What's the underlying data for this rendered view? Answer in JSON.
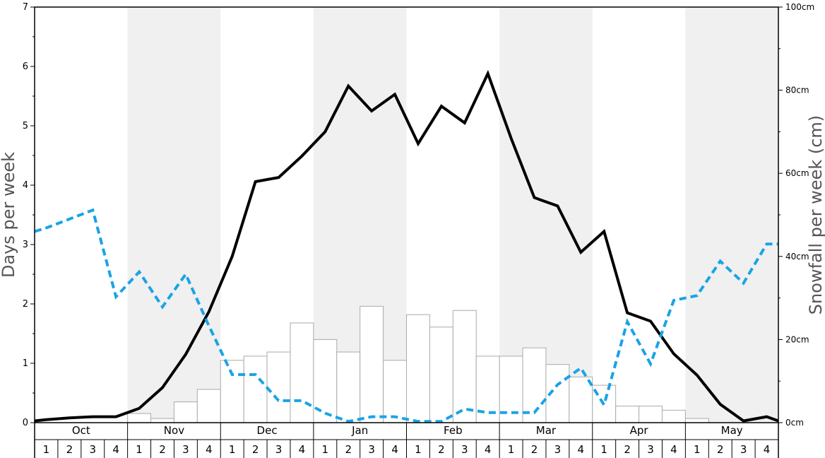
{
  "chart_data": {
    "type": "bar+line",
    "ylabel_left": "Days per week",
    "ylabel_right": "Snowfall per week (cm)",
    "ylim_left": [
      0,
      7
    ],
    "ylim_right": [
      0,
      100
    ],
    "yticks_left": [
      "0",
      "1",
      "2",
      "3",
      "4",
      "5",
      "6",
      "7"
    ],
    "yticks_right": [
      "0cm",
      "20cm",
      "40cm",
      "60cm",
      "80cm",
      "100cm"
    ],
    "months": [
      "Oct",
      "Nov",
      "Dec",
      "Jan",
      "Feb",
      "Mar",
      "Apr",
      "May"
    ],
    "weeks": [
      "1",
      "2",
      "3",
      "4"
    ],
    "shaded_months": [
      "Nov",
      "Jan",
      "Mar",
      "May"
    ],
    "colors": {
      "bars_stroke": "#aaaaaa",
      "bars_fill": "#ffffff",
      "solid_line": "#000000",
      "dashed_line": "#1aa3e6",
      "shade": "#f0f0f0"
    },
    "series": [
      {
        "kind": "bars",
        "axis": "right",
        "values": [
          0,
          0,
          0,
          0,
          2.2,
          1.0,
          5.0,
          8.0,
          15.0,
          16.0,
          17.0,
          24.0,
          20.0,
          17.0,
          28.0,
          15.0,
          26.0,
          23.0,
          27.0,
          16.0,
          16.0,
          18.0,
          14.0,
          11.0,
          9.0,
          4.0,
          4.0,
          3.0,
          1.0,
          0,
          0,
          0
        ]
      },
      {
        "kind": "solid-line",
        "axis": "left",
        "x": [
          0,
          0.5,
          1.5,
          2.5,
          3.5,
          4.5,
          5.5,
          6.5,
          7.5,
          8.5,
          9.5,
          10.5,
          11.5,
          12.5,
          13.5,
          14.5,
          15.5,
          16.5,
          17.5,
          18.5,
          19.5,
          20.5,
          21.5,
          22.5,
          23.5,
          24.5,
          25.5,
          26.5,
          27.5,
          28.5,
          29.5,
          30.5,
          31.5,
          32
        ],
        "values": [
          0.03,
          0.05,
          0.08,
          0.1,
          0.1,
          0.24,
          0.59,
          1.15,
          1.87,
          2.8,
          4.06,
          4.13,
          4.49,
          4.9,
          5.67,
          5.25,
          5.53,
          4.7,
          5.33,
          5.05,
          5.88,
          4.79,
          3.79,
          3.65,
          2.87,
          3.22,
          1.85,
          1.71,
          1.16,
          0.8,
          0.31,
          0.03,
          0.1,
          0.03
        ]
      },
      {
        "kind": "dashed-line",
        "axis": "left",
        "x": [
          0,
          0.5,
          1.5,
          2.5,
          3.5,
          4.5,
          5.5,
          6.5,
          7.5,
          8.5,
          9.5,
          10.5,
          11.5,
          12.5,
          13.5,
          14.5,
          15.5,
          16.5,
          17.5,
          18.5,
          19.5,
          20.5,
          21.5,
          22.5,
          23.5,
          24.5,
          25.5,
          26.5,
          27.5,
          28.5,
          29.5,
          30.5,
          31.5,
          32
        ],
        "values": [
          3.22,
          3.28,
          3.43,
          3.58,
          2.12,
          2.54,
          1.95,
          2.5,
          1.63,
          0.81,
          0.81,
          0.37,
          0.37,
          0.16,
          0.02,
          0.1,
          0.1,
          0.02,
          0.02,
          0.23,
          0.17,
          0.17,
          0.17,
          0.64,
          0.92,
          0.3,
          1.7,
          0.99,
          2.06,
          2.14,
          2.72,
          2.35,
          3.01,
          3.01
        ]
      }
    ]
  }
}
